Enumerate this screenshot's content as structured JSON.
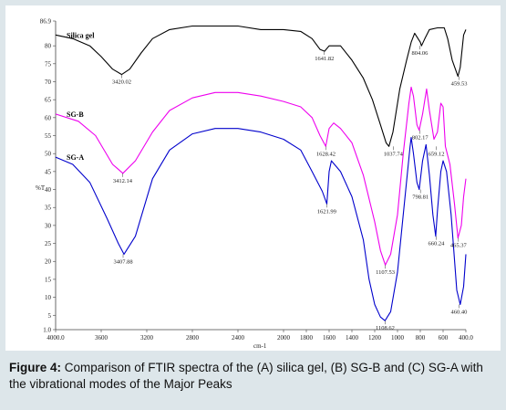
{
  "caption": {
    "label": "Figure 4:",
    "text": " Comparison of FTIR spectra of the (A) silica gel, (B) SG-B and (C) SG-A with the vibrational modes of the Major Peaks"
  },
  "chart_data": {
    "type": "line",
    "xlabel": "cm-1",
    "ylabel": "%T",
    "xlim": [
      4000,
      400
    ],
    "ylim": [
      1,
      86.9
    ],
    "x_ticks": [
      4000,
      3600,
      3200,
      2800,
      2400,
      2000,
      1800,
      1600,
      1400,
      1200,
      1000,
      800,
      600,
      400
    ],
    "x_tick_labels": [
      "4000.0",
      "3600",
      "3200",
      "2800",
      "2400",
      "2000",
      "1800",
      "1600",
      "1400",
      "1200",
      "1000",
      "800",
      "600",
      "400.0"
    ],
    "y_ticks": [
      86.9,
      80,
      75,
      70,
      65,
      60,
      55,
      50,
      45,
      40,
      35,
      30,
      25,
      20,
      15,
      10,
      5,
      1
    ],
    "y_tick_labels": [
      "86.9",
      "80",
      "75",
      "70",
      "65",
      "60",
      "55",
      "50",
      "45",
      "40",
      "35",
      "30",
      "25",
      "20",
      "15",
      "10",
      "5",
      "1.0"
    ],
    "grid": false,
    "series": [
      {
        "name": "Silica gel",
        "color": "#000000",
        "points": [
          [
            4000,
            83
          ],
          [
            3850,
            82
          ],
          [
            3700,
            80
          ],
          [
            3600,
            77
          ],
          [
            3500,
            73.5
          ],
          [
            3420,
            72
          ],
          [
            3350,
            73.5
          ],
          [
            3250,
            78
          ],
          [
            3150,
            82
          ],
          [
            3000,
            84.5
          ],
          [
            2800,
            85.5
          ],
          [
            2600,
            85.5
          ],
          [
            2400,
            85.5
          ],
          [
            2200,
            84.5
          ],
          [
            2000,
            84.5
          ],
          [
            1850,
            84
          ],
          [
            1750,
            82
          ],
          [
            1680,
            79
          ],
          [
            1640,
            78.5
          ],
          [
            1600,
            80
          ],
          [
            1500,
            80
          ],
          [
            1400,
            76
          ],
          [
            1300,
            71
          ],
          [
            1220,
            65
          ],
          [
            1150,
            58
          ],
          [
            1100,
            53
          ],
          [
            1075,
            52
          ],
          [
            1040,
            56
          ],
          [
            980,
            68
          ],
          [
            920,
            76
          ],
          [
            880,
            81
          ],
          [
            850,
            83.5
          ],
          [
            800,
            81
          ],
          [
            790,
            80
          ],
          [
            760,
            82
          ],
          [
            720,
            84.5
          ],
          [
            650,
            85
          ],
          [
            590,
            85
          ],
          [
            560,
            82
          ],
          [
            520,
            76
          ],
          [
            470,
            71.5
          ],
          [
            450,
            74
          ],
          [
            420,
            83
          ],
          [
            400,
            84.5
          ]
        ],
        "peaks": [
          {
            "x": 3420.02,
            "y": 72,
            "label": "3420.02"
          },
          {
            "x": 1641.82,
            "y": 78.5,
            "label": "1641.82"
          },
          {
            "x": 1037.74,
            "y": 52,
            "label": "1037.74"
          },
          {
            "x": 804.06,
            "y": 80,
            "label": "804.06"
          },
          {
            "x": 459.53,
            "y": 71.5,
            "label": "459.53"
          }
        ],
        "label": "Silica gel"
      },
      {
        "name": "SG-B",
        "color": "#ee00ee",
        "points": [
          [
            4000,
            61
          ],
          [
            3800,
            59
          ],
          [
            3650,
            55
          ],
          [
            3500,
            47
          ],
          [
            3410,
            44.5
          ],
          [
            3300,
            48
          ],
          [
            3150,
            56
          ],
          [
            3000,
            62
          ],
          [
            2800,
            65.5
          ],
          [
            2600,
            67
          ],
          [
            2400,
            67
          ],
          [
            2200,
            66
          ],
          [
            2000,
            64.5
          ],
          [
            1850,
            63
          ],
          [
            1750,
            60
          ],
          [
            1680,
            55
          ],
          [
            1630,
            52
          ],
          [
            1600,
            57
          ],
          [
            1560,
            58.5
          ],
          [
            1500,
            57
          ],
          [
            1400,
            53
          ],
          [
            1300,
            44
          ],
          [
            1200,
            31
          ],
          [
            1150,
            23
          ],
          [
            1107,
            19
          ],
          [
            1060,
            22
          ],
          [
            1000,
            33
          ],
          [
            950,
            50
          ],
          [
            900,
            64
          ],
          [
            880,
            68.5
          ],
          [
            860,
            66
          ],
          [
            830,
            58
          ],
          [
            810,
            56.5
          ],
          [
            780,
            61
          ],
          [
            745,
            68
          ],
          [
            720,
            62
          ],
          [
            680,
            54
          ],
          [
            650,
            56
          ],
          [
            620,
            64
          ],
          [
            600,
            63
          ],
          [
            580,
            52
          ],
          [
            540,
            47
          ],
          [
            500,
            36
          ],
          [
            470,
            26.5
          ],
          [
            440,
            30
          ],
          [
            420,
            38
          ],
          [
            400,
            43
          ]
        ],
        "peaks": [
          {
            "x": 3412.14,
            "y": 44.5,
            "label": "3412.14"
          },
          {
            "x": 1628.42,
            "y": 52,
            "label": "1628.42"
          },
          {
            "x": 1107.53,
            "y": 19,
            "label": "1107.53"
          },
          {
            "x": 802.17,
            "y": 56.5,
            "label": "802.17"
          },
          {
            "x": 659.12,
            "y": 52,
            "label": "659.12"
          },
          {
            "x": 465.37,
            "y": 26.5,
            "label": "465.37"
          }
        ],
        "label": "SG-B"
      },
      {
        "name": "SG-A",
        "color": "#0000cc",
        "points": [
          [
            4000,
            49
          ],
          [
            3850,
            47
          ],
          [
            3700,
            42
          ],
          [
            3550,
            32
          ],
          [
            3450,
            25
          ],
          [
            3400,
            22
          ],
          [
            3300,
            27
          ],
          [
            3150,
            43
          ],
          [
            3000,
            51
          ],
          [
            2800,
            55.5
          ],
          [
            2600,
            57
          ],
          [
            2400,
            57
          ],
          [
            2200,
            56
          ],
          [
            2000,
            54
          ],
          [
            1850,
            51
          ],
          [
            1750,
            45
          ],
          [
            1660,
            39.5
          ],
          [
            1620,
            36
          ],
          [
            1600,
            45
          ],
          [
            1580,
            48
          ],
          [
            1500,
            45
          ],
          [
            1400,
            38
          ],
          [
            1300,
            26
          ],
          [
            1250,
            15
          ],
          [
            1200,
            8
          ],
          [
            1150,
            4.5
          ],
          [
            1110,
            3.5
          ],
          [
            1060,
            6
          ],
          [
            1000,
            17
          ],
          [
            950,
            33
          ],
          [
            890,
            52
          ],
          [
            880,
            54.5
          ],
          [
            860,
            50
          ],
          [
            830,
            42
          ],
          [
            810,
            40
          ],
          [
            780,
            48
          ],
          [
            750,
            52.5
          ],
          [
            720,
            44
          ],
          [
            690,
            33
          ],
          [
            665,
            27
          ],
          [
            650,
            34
          ],
          [
            620,
            45
          ],
          [
            600,
            48
          ],
          [
            570,
            45
          ],
          [
            530,
            33
          ],
          [
            480,
            12
          ],
          [
            450,
            8
          ],
          [
            420,
            13
          ],
          [
            400,
            22
          ]
        ],
        "peaks": [
          {
            "x": 3407.88,
            "y": 22,
            "label": "3407.88"
          },
          {
            "x": 1621.99,
            "y": 36,
            "label": "1621.99"
          },
          {
            "x": 1108.62,
            "y": 3.5,
            "label": "1108.62"
          },
          {
            "x": 798.81,
            "y": 40,
            "label": "798.81"
          },
          {
            "x": 660.24,
            "y": 27,
            "label": "660.24"
          },
          {
            "x": 460.4,
            "y": 8,
            "label": "460.40"
          }
        ],
        "label": "SG-A"
      }
    ]
  }
}
